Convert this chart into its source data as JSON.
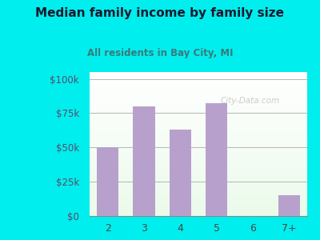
{
  "categories": [
    "2",
    "3",
    "4",
    "5",
    "6",
    "7+"
  ],
  "values": [
    50000,
    80000,
    63000,
    82000,
    0,
    15000
  ],
  "bar_color": "#b8a0cc",
  "title": "Median family income by family size",
  "subtitle": "All residents in Bay City, MI",
  "title_color": "#1a1a2e",
  "subtitle_color": "#3a7a7a",
  "outer_bg_color": "#00eeee",
  "ylabel_color": "#5a4a6a",
  "yticks": [
    0,
    25000,
    50000,
    75000,
    100000
  ],
  "ytick_labels": [
    "$0",
    "$25k",
    "$50k",
    "$75k",
    "$100k"
  ],
  "ylim": [
    0,
    105000
  ],
  "watermark": "City-Data.com"
}
